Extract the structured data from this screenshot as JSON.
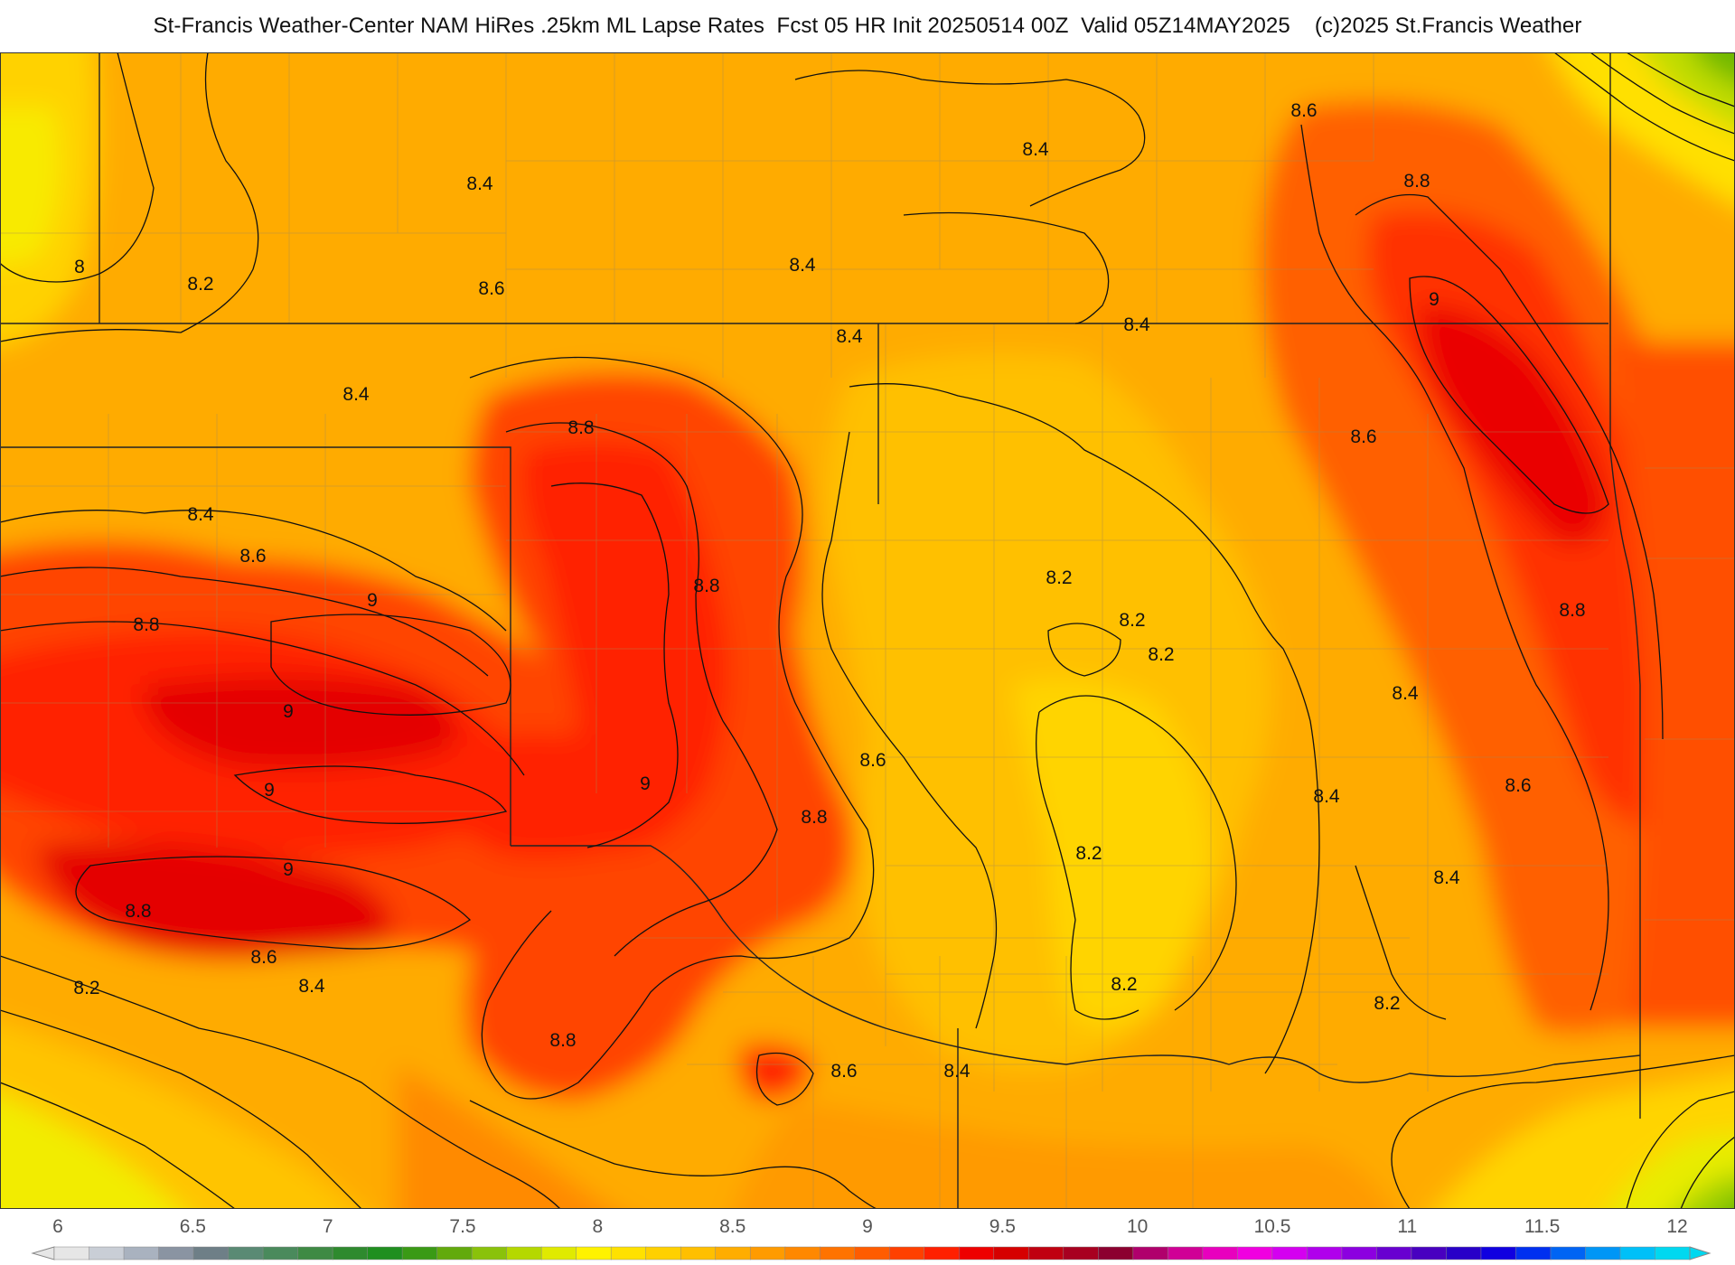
{
  "header": {
    "title": "St-Francis Weather-Center NAM HiRes .25km ML Lapse Rates  Fcst 05 HR Init 20250514 00Z  Valid 05Z14MAY2025    (c)2025 St.Francis Weather"
  },
  "map": {
    "contour_labels": [
      "8",
      "8.2",
      "8.4",
      "8.6",
      "8.8",
      "9"
    ]
  },
  "colorbar": {
    "tick_labels": [
      "6",
      "6.5",
      "7",
      "7.5",
      "8",
      "8.5",
      "9",
      "9.5",
      "10",
      "10.5",
      "11",
      "11.5",
      "12"
    ],
    "colors": [
      "#e6e6e6",
      "#c9ced6",
      "#a9b2bf",
      "#8a94a2",
      "#6e7f87",
      "#5a8a74",
      "#4a8a5c",
      "#3e8a44",
      "#2e8a2e",
      "#1f8f1f",
      "#3a9a15",
      "#62aa0c",
      "#8ac20a",
      "#b5d800",
      "#e0ea00",
      "#fff200",
      "#ffe100",
      "#ffd000",
      "#ffbf00",
      "#ffad00",
      "#ff9b00",
      "#ff8800",
      "#ff7300",
      "#ff5c00",
      "#ff4000",
      "#ff2000",
      "#ee0000",
      "#d60000",
      "#c00010",
      "#a80020",
      "#8c0030",
      "#b0006c",
      "#d00096",
      "#e800be",
      "#f000e0",
      "#d400f0",
      "#b000ec",
      "#8c00e0",
      "#6800d0",
      "#4800c0",
      "#2800c8",
      "#1000e0",
      "#0030f0",
      "#0064f4",
      "#0096f6",
      "#00c0f8",
      "#00d8f0"
    ]
  }
}
